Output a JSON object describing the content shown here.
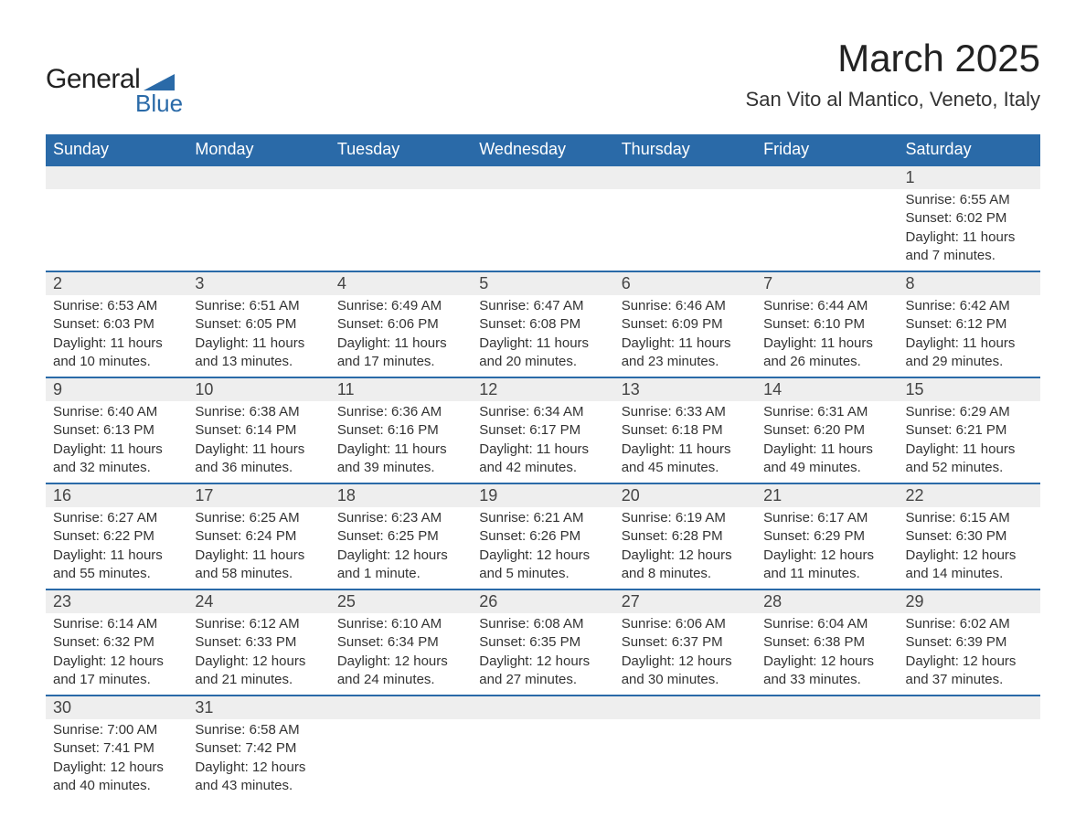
{
  "logo": {
    "text1": "General",
    "text2": "Blue",
    "shape_color": "#2a6aa8"
  },
  "title": "March 2025",
  "location": "San Vito al Mantico, Veneto, Italy",
  "colors": {
    "header_bg": "#2a6aa8",
    "header_fg": "#ffffff",
    "row_divider": "#2a6aa8",
    "daynum_bg": "#eeeeee",
    "body_bg": "#ffffff",
    "text": "#333333"
  },
  "columns": [
    "Sunday",
    "Monday",
    "Tuesday",
    "Wednesday",
    "Thursday",
    "Friday",
    "Saturday"
  ],
  "weeks": [
    [
      null,
      null,
      null,
      null,
      null,
      null,
      {
        "n": "1",
        "sunrise": "6:55 AM",
        "sunset": "6:02 PM",
        "daylight": "11 hours and 7 minutes."
      }
    ],
    [
      {
        "n": "2",
        "sunrise": "6:53 AM",
        "sunset": "6:03 PM",
        "daylight": "11 hours and 10 minutes."
      },
      {
        "n": "3",
        "sunrise": "6:51 AM",
        "sunset": "6:05 PM",
        "daylight": "11 hours and 13 minutes."
      },
      {
        "n": "4",
        "sunrise": "6:49 AM",
        "sunset": "6:06 PM",
        "daylight": "11 hours and 17 minutes."
      },
      {
        "n": "5",
        "sunrise": "6:47 AM",
        "sunset": "6:08 PM",
        "daylight": "11 hours and 20 minutes."
      },
      {
        "n": "6",
        "sunrise": "6:46 AM",
        "sunset": "6:09 PM",
        "daylight": "11 hours and 23 minutes."
      },
      {
        "n": "7",
        "sunrise": "6:44 AM",
        "sunset": "6:10 PM",
        "daylight": "11 hours and 26 minutes."
      },
      {
        "n": "8",
        "sunrise": "6:42 AM",
        "sunset": "6:12 PM",
        "daylight": "11 hours and 29 minutes."
      }
    ],
    [
      {
        "n": "9",
        "sunrise": "6:40 AM",
        "sunset": "6:13 PM",
        "daylight": "11 hours and 32 minutes."
      },
      {
        "n": "10",
        "sunrise": "6:38 AM",
        "sunset": "6:14 PM",
        "daylight": "11 hours and 36 minutes."
      },
      {
        "n": "11",
        "sunrise": "6:36 AM",
        "sunset": "6:16 PM",
        "daylight": "11 hours and 39 minutes."
      },
      {
        "n": "12",
        "sunrise": "6:34 AM",
        "sunset": "6:17 PM",
        "daylight": "11 hours and 42 minutes."
      },
      {
        "n": "13",
        "sunrise": "6:33 AM",
        "sunset": "6:18 PM",
        "daylight": "11 hours and 45 minutes."
      },
      {
        "n": "14",
        "sunrise": "6:31 AM",
        "sunset": "6:20 PM",
        "daylight": "11 hours and 49 minutes."
      },
      {
        "n": "15",
        "sunrise": "6:29 AM",
        "sunset": "6:21 PM",
        "daylight": "11 hours and 52 minutes."
      }
    ],
    [
      {
        "n": "16",
        "sunrise": "6:27 AM",
        "sunset": "6:22 PM",
        "daylight": "11 hours and 55 minutes."
      },
      {
        "n": "17",
        "sunrise": "6:25 AM",
        "sunset": "6:24 PM",
        "daylight": "11 hours and 58 minutes."
      },
      {
        "n": "18",
        "sunrise": "6:23 AM",
        "sunset": "6:25 PM",
        "daylight": "12 hours and 1 minute."
      },
      {
        "n": "19",
        "sunrise": "6:21 AM",
        "sunset": "6:26 PM",
        "daylight": "12 hours and 5 minutes."
      },
      {
        "n": "20",
        "sunrise": "6:19 AM",
        "sunset": "6:28 PM",
        "daylight": "12 hours and 8 minutes."
      },
      {
        "n": "21",
        "sunrise": "6:17 AM",
        "sunset": "6:29 PM",
        "daylight": "12 hours and 11 minutes."
      },
      {
        "n": "22",
        "sunrise": "6:15 AM",
        "sunset": "6:30 PM",
        "daylight": "12 hours and 14 minutes."
      }
    ],
    [
      {
        "n": "23",
        "sunrise": "6:14 AM",
        "sunset": "6:32 PM",
        "daylight": "12 hours and 17 minutes."
      },
      {
        "n": "24",
        "sunrise": "6:12 AM",
        "sunset": "6:33 PM",
        "daylight": "12 hours and 21 minutes."
      },
      {
        "n": "25",
        "sunrise": "6:10 AM",
        "sunset": "6:34 PM",
        "daylight": "12 hours and 24 minutes."
      },
      {
        "n": "26",
        "sunrise": "6:08 AM",
        "sunset": "6:35 PM",
        "daylight": "12 hours and 27 minutes."
      },
      {
        "n": "27",
        "sunrise": "6:06 AM",
        "sunset": "6:37 PM",
        "daylight": "12 hours and 30 minutes."
      },
      {
        "n": "28",
        "sunrise": "6:04 AM",
        "sunset": "6:38 PM",
        "daylight": "12 hours and 33 minutes."
      },
      {
        "n": "29",
        "sunrise": "6:02 AM",
        "sunset": "6:39 PM",
        "daylight": "12 hours and 37 minutes."
      }
    ],
    [
      {
        "n": "30",
        "sunrise": "7:00 AM",
        "sunset": "7:41 PM",
        "daylight": "12 hours and 40 minutes."
      },
      {
        "n": "31",
        "sunrise": "6:58 AM",
        "sunset": "7:42 PM",
        "daylight": "12 hours and 43 minutes."
      },
      null,
      null,
      null,
      null,
      null
    ]
  ],
  "labels": {
    "sunrise": "Sunrise:",
    "sunset": "Sunset:",
    "daylight": "Daylight:"
  }
}
